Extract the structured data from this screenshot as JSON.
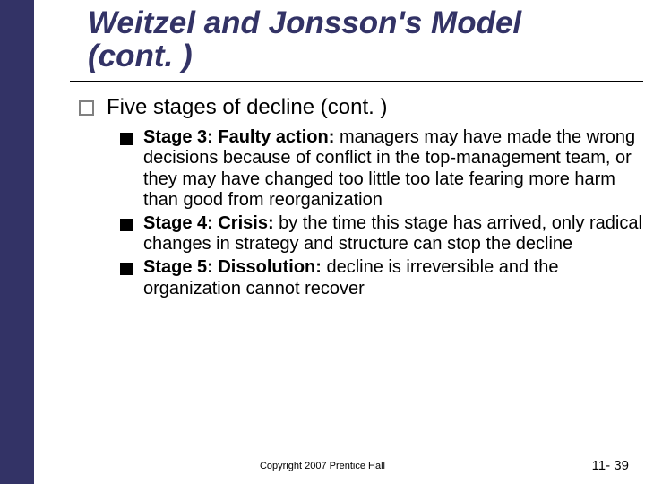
{
  "colors": {
    "sidebar": "#333366",
    "title": "#333366",
    "divider": "#000000",
    "bullet_outline": "#808080",
    "bullet_solid": "#000000",
    "text": "#000000",
    "background": "#ffffff"
  },
  "title_line1": "Weitzel and Jonsson's Model",
  "title_line2": "(cont. )",
  "heading": "Five stages of decline (cont. )",
  "items": [
    {
      "lead": "Stage 3: Faulty action: ",
      "body": "managers may have made the wrong decisions because of conflict in the top-management team, or they may have changed too little too late fearing more harm than good from reorganization"
    },
    {
      "lead": "Stage 4: Crisis: ",
      "body": "by the time this stage has arrived, only radical changes in strategy and structure can stop the decline"
    },
    {
      "lead": "Stage 5: Dissolution: ",
      "body": "decline is irreversible and the organization cannot recover"
    }
  ],
  "footer_center": "Copyright 2007 Prentice Hall",
  "footer_right": "11- 39"
}
